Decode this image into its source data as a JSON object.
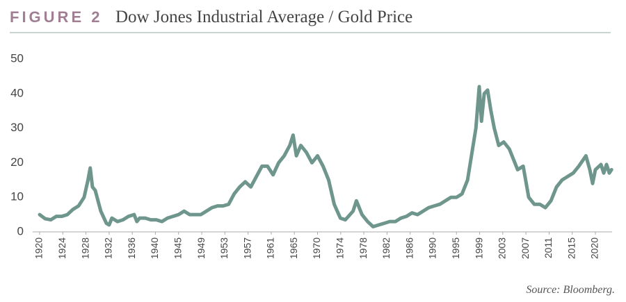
{
  "figure_label": "FIGURE 2",
  "source": "Source: Bloomberg.",
  "chart_data": {
    "type": "line",
    "title": "Dow Jones Industrial Average / Gold Price",
    "color": "#6f968c",
    "x": [
      1920,
      1921,
      1922,
      1923,
      1924,
      1925,
      1926,
      1927,
      1928,
      1928.7,
      1929.1,
      1929.5,
      1930,
      1931,
      1932,
      1932.5,
      1933,
      1934,
      1935,
      1936,
      1937,
      1937.5,
      1938,
      1939,
      1940,
      1941,
      1942,
      1943,
      1944,
      1945,
      1946,
      1947,
      1948,
      1949,
      1950,
      1951,
      1952,
      1953,
      1954,
      1955,
      1956,
      1957,
      1958,
      1959,
      1960,
      1961,
      1962,
      1963,
      1964,
      1965,
      1965.6,
      1966.2,
      1967,
      1968,
      1969,
      1970,
      1971,
      1972,
      1973,
      1974.1,
      1975,
      1976.4,
      1977,
      1978,
      1979,
      1980,
      1981,
      1982,
      1983,
      1984,
      1985,
      1986,
      1987,
      1988,
      1989,
      1990,
      1991,
      1992,
      1993,
      1994,
      1995,
      1996,
      1997,
      1998,
      1998.5,
      1999.1,
      1999.5,
      2000,
      2000.6,
      2001.2,
      2001.8,
      2002.6,
      2003.5,
      2004.5,
      2005.5,
      2006,
      2007,
      2008,
      2009,
      2010,
      2011,
      2012,
      2013,
      2014,
      2015,
      2016,
      2017,
      2018.3,
      2019,
      2019.5,
      2020,
      2021,
      2021.5,
      2022,
      2022.5,
      2022.9
    ],
    "values": [
      5,
      3.8,
      3.5,
      4.5,
      4.5,
      5,
      6.5,
      7.5,
      10,
      15,
      18.5,
      13,
      12,
      6,
      2.5,
      2,
      4,
      3,
      3.5,
      4.5,
      5,
      3,
      4,
      4,
      3.5,
      3.5,
      3,
      4,
      4.5,
      5,
      6,
      5,
      5,
      5,
      6,
      7,
      7.5,
      7.5,
      8,
      11,
      13,
      14.5,
      13,
      16,
      19,
      19,
      16.5,
      20,
      22,
      25,
      28,
      22,
      25,
      23,
      20,
      22,
      19,
      15,
      8,
      4,
      3.5,
      6,
      9,
      5,
      3,
      1.5,
      2,
      2.5,
      3,
      3,
      4,
      4.5,
      5.5,
      5,
      6,
      7,
      7.5,
      8,
      9,
      10,
      10,
      11,
      15,
      25,
      30,
      42,
      32,
      40,
      41,
      35,
      30,
      25,
      26,
      24,
      20,
      18,
      19,
      10,
      8,
      8,
      7,
      9,
      13,
      15,
      16,
      17,
      19,
      22,
      18,
      14,
      18,
      19.5,
      17,
      19.5,
      17,
      18
    ],
    "xlim": [
      1918.75,
      2023
    ],
    "xticks": [
      1920,
      {
        "value": 1924.17,
        "label": "1924"
      },
      {
        "value": 1928.33,
        "label": "1928"
      },
      {
        "value": 1932.5,
        "label": "1932"
      },
      {
        "value": 1936.67,
        "label": "1936"
      },
      {
        "value": 1940.83,
        "label": "1940"
      },
      1945,
      {
        "value": 1949.17,
        "label": "1949"
      },
      {
        "value": 1953.33,
        "label": "1953"
      },
      {
        "value": 1957.5,
        "label": "1957"
      },
      {
        "value": 1961.67,
        "label": "1961"
      },
      {
        "value": 1965.83,
        "label": "1965"
      },
      1970,
      {
        "value": 1974.17,
        "label": "1974"
      },
      {
        "value": 1978.33,
        "label": "1978"
      },
      {
        "value": 1982.5,
        "label": "1982"
      },
      {
        "value": 1986.67,
        "label": "1986"
      },
      {
        "value": 1990.83,
        "label": "1990"
      },
      1995,
      {
        "value": 1999.17,
        "label": "1999"
      },
      {
        "value": 2003.33,
        "label": "2003"
      },
      {
        "value": 2007.5,
        "label": "2007"
      },
      {
        "value": 2011.67,
        "label": "2011"
      },
      {
        "value": 2015.83,
        "label": "2015"
      },
      2020
    ],
    "ylim": [
      0,
      50
    ],
    "yticks": [
      0,
      10,
      20,
      30,
      40,
      50
    ],
    "grid": false
  }
}
